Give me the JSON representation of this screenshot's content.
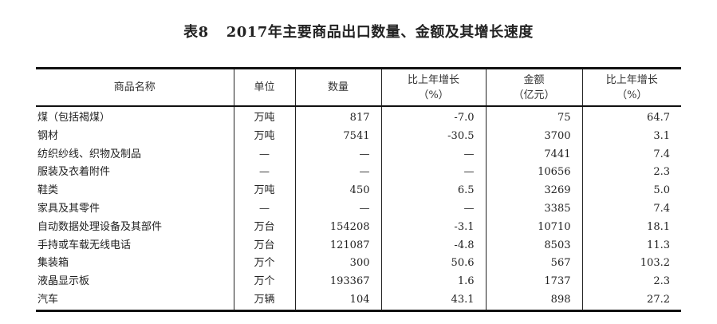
{
  "title": {
    "number": "表8",
    "text": "2017年主要商品出口数量、金额及其增长速度"
  },
  "headers": [
    "商品名称",
    "单位",
    "数量",
    [
      "比上年增长",
      "（%）"
    ],
    [
      "金额",
      "（亿元）"
    ],
    [
      "比上年增长",
      "（%）"
    ]
  ],
  "rows": [
    [
      "煤（包括褐煤）",
      "万吨",
      "817",
      "-7.0",
      "75",
      "64.7"
    ],
    [
      "钢材",
      "万吨",
      "7541",
      "-30.5",
      "3700",
      "3.1"
    ],
    [
      "纺织纱线、织物及制品",
      "—",
      "—",
      "—",
      "7441",
      "7.4"
    ],
    [
      "服装及衣着附件",
      "—",
      "—",
      "—",
      "10656",
      "2.3"
    ],
    [
      "鞋类",
      "万吨",
      "450",
      "6.5",
      "3269",
      "5.0"
    ],
    [
      "家具及其零件",
      "—",
      "—",
      "—",
      "3385",
      "7.4"
    ],
    [
      "自动数据处理设备及其部件",
      "万台",
      "154208",
      "-3.1",
      "10710",
      "18.1"
    ],
    [
      "手持或车载无线电话",
      "万台",
      "121087",
      "-4.8",
      "8503",
      "11.3"
    ],
    [
      "集装箱",
      "万个",
      "300",
      "50.6",
      "567",
      "103.2"
    ],
    [
      "液晶显示板",
      "万个",
      "193367",
      "1.6",
      "1737",
      "2.3"
    ],
    [
      "汽车",
      "万辆",
      "104",
      "43.1",
      "898",
      "27.2"
    ]
  ]
}
